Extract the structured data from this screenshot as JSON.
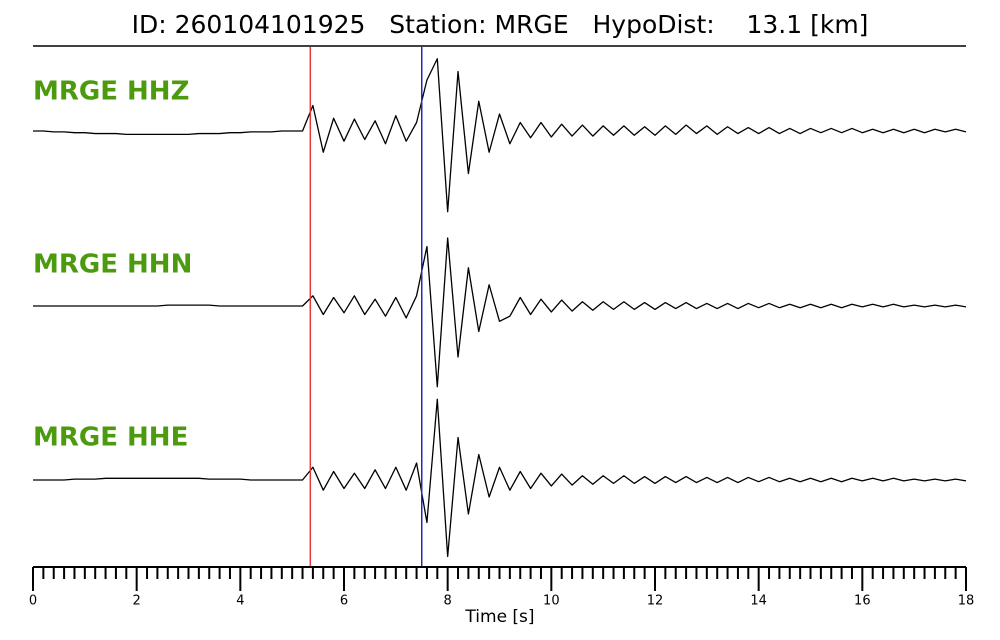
{
  "chart_data": {
    "type": "line",
    "title": "ID: 260104101925   Station: MRGE   HypoDist:    13.1 [km]",
    "x_label": "Time [s]",
    "x": [
      0,
      0.2,
      0.4,
      0.6,
      0.8,
      1,
      1.2,
      1.4,
      1.6,
      1.8,
      2,
      2.2,
      2.4,
      2.6,
      2.8,
      3,
      3.2,
      3.4,
      3.6,
      3.8,
      4,
      4.2,
      4.4,
      4.6,
      4.8,
      5,
      5.2,
      5.4,
      5.6,
      5.8,
      6,
      6.2,
      6.4,
      6.6,
      6.8,
      7,
      7.2,
      7.4,
      7.6,
      7.8,
      8,
      8.2,
      8.4,
      8.6,
      8.8,
      9,
      9.2,
      9.4,
      9.6,
      9.8,
      10,
      10.2,
      10.4,
      10.6,
      10.8,
      11,
      11.2,
      11.4,
      11.6,
      11.8,
      12,
      12.2,
      12.4,
      12.6,
      12.8,
      13,
      13.2,
      13.4,
      13.6,
      13.8,
      14,
      14.2,
      14.4,
      14.6,
      14.8,
      15,
      15.2,
      15.4,
      15.6,
      15.8,
      16,
      16.2,
      16.4,
      16.6,
      16.8,
      17,
      17.2,
      17.4,
      17.6,
      17.8,
      18
    ],
    "series": [
      {
        "name": "MRGE HHZ",
        "color": "#000000",
        "values": [
          0,
          0,
          -0.01,
          -0.01,
          -0.02,
          -0.02,
          -0.03,
          -0.03,
          -0.03,
          -0.04,
          -0.04,
          -0.04,
          -0.04,
          -0.04,
          -0.04,
          -0.04,
          -0.03,
          -0.03,
          -0.03,
          -0.02,
          -0.02,
          -0.01,
          -0.01,
          -0.01,
          0,
          0,
          0,
          0.3,
          -0.25,
          0.15,
          -0.12,
          0.14,
          -0.1,
          0.12,
          -0.15,
          0.18,
          -0.12,
          0.1,
          0.6,
          0.85,
          -0.95,
          0.7,
          -0.5,
          0.35,
          -0.25,
          0.2,
          -0.15,
          0.1,
          -0.08,
          0.1,
          -0.07,
          0.08,
          -0.06,
          0.07,
          -0.06,
          0.06,
          -0.05,
          0.06,
          -0.05,
          0.05,
          -0.05,
          0.06,
          -0.04,
          0.07,
          -0.03,
          0.06,
          -0.04,
          0.05,
          -0.03,
          0.04,
          -0.03,
          0.04,
          -0.03,
          0.03,
          -0.03,
          0.03,
          -0.02,
          0.03,
          -0.02,
          0.03,
          -0.02,
          0.02,
          -0.02,
          0.02,
          -0.02,
          0.02,
          -0.02,
          0.02,
          -0.01,
          0.02,
          -0.01
        ]
      },
      {
        "name": "MRGE HHN",
        "color": "#000000",
        "values": [
          0,
          0,
          0,
          0,
          0,
          0,
          0,
          0,
          0,
          0,
          0,
          0,
          0,
          0.01,
          0.01,
          0.01,
          0.01,
          0.01,
          0,
          0,
          0,
          0,
          0,
          0,
          0,
          0,
          0,
          0.12,
          -0.1,
          0.1,
          -0.08,
          0.12,
          -0.1,
          0.08,
          -0.12,
          0.1,
          -0.14,
          0.12,
          0.7,
          -0.95,
          0.8,
          -0.6,
          0.45,
          -0.3,
          0.25,
          -0.18,
          -0.12,
          0.1,
          -0.1,
          0.08,
          -0.07,
          0.07,
          -0.06,
          0.05,
          -0.05,
          0.05,
          -0.04,
          0.05,
          -0.04,
          0.04,
          -0.04,
          0.04,
          -0.03,
          0.04,
          -0.03,
          0.03,
          -0.03,
          0.03,
          -0.03,
          0.03,
          -0.02,
          0.03,
          -0.02,
          0.02,
          -0.02,
          0.02,
          -0.02,
          0.02,
          -0.02,
          0.02,
          -0.01,
          0.02,
          -0.01,
          0.02,
          -0.01,
          0.01,
          -0.01,
          0.01,
          -0.01,
          0.01,
          -0.01
        ]
      },
      {
        "name": "MRGE HHE",
        "color": "#000000",
        "values": [
          0,
          0,
          0,
          0,
          0.01,
          0.01,
          0.01,
          0.02,
          0.02,
          0.02,
          0.02,
          0.02,
          0.02,
          0.02,
          0.02,
          0.02,
          0.02,
          0.01,
          0.01,
          0.01,
          0.01,
          0,
          0,
          0,
          0,
          0,
          0,
          0.15,
          -0.12,
          0.1,
          -0.1,
          0.08,
          -0.1,
          0.12,
          -0.1,
          0.15,
          -0.12,
          0.2,
          -0.5,
          0.95,
          -0.9,
          0.5,
          -0.4,
          0.3,
          -0.2,
          0.15,
          -0.12,
          0.1,
          -0.1,
          0.08,
          -0.07,
          0.07,
          -0.06,
          0.05,
          -0.05,
          0.05,
          -0.04,
          0.05,
          -0.04,
          0.04,
          -0.04,
          0.04,
          -0.03,
          0.04,
          -0.03,
          0.03,
          -0.03,
          0.03,
          -0.03,
          0.03,
          -0.02,
          0.03,
          -0.02,
          0.02,
          -0.02,
          0.02,
          -0.02,
          0.02,
          -0.02,
          0.02,
          -0.01,
          0.02,
          -0.01,
          0.02,
          -0.01,
          0.01,
          -0.01,
          0.01,
          -0.01,
          0.01,
          -0.01
        ]
      }
    ],
    "label_color": "#4c9a0e",
    "vlines": [
      {
        "x": 5.35,
        "color": "#e53935"
      },
      {
        "x": 7.5,
        "color": "#2a2ab8"
      }
    ],
    "xlim": [
      0,
      18
    ],
    "xticks": [
      0,
      2,
      4,
      6,
      8,
      10,
      12,
      14,
      16,
      18
    ],
    "ylim": [
      -1,
      1
    ]
  }
}
